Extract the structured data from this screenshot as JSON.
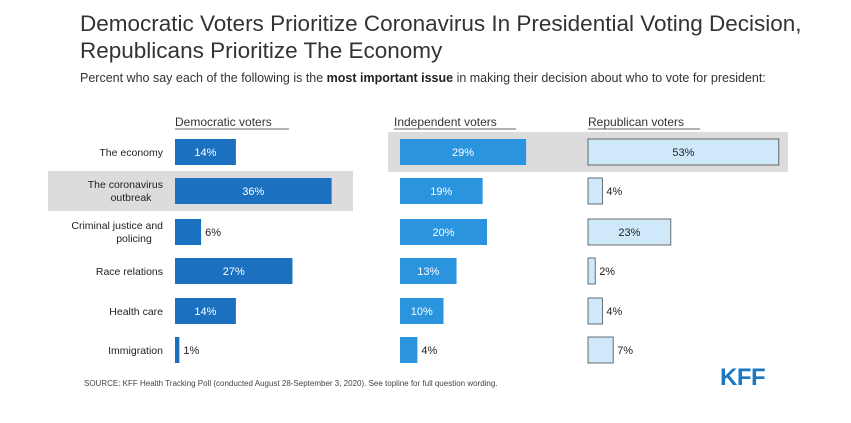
{
  "title": "Democratic Voters Prioritize Coronavirus In Presidential Voting Decision, Republicans Prioritize The Economy",
  "subtitle": {
    "before": "Percent who say each of the following is the ",
    "bold": "most important issue",
    "after": " in making their decision about who to vote for president:"
  },
  "source": "SOURCE: KFF Health Tracking Poll (conducted August 28-September 3, 2020). See topline for full question wording.",
  "logo": "KFF",
  "colors": {
    "democratic": "#1b70bf",
    "independent": "#2b94de",
    "republican": "#cfe9fb",
    "republican_border": "#4a4a4a",
    "highlight": "#dcdcdc"
  },
  "chart_data": {
    "type": "bar",
    "orientation": "horizontal",
    "unit": "%",
    "categories": [
      "The economy",
      "The coronavirus outbreak",
      "Criminal justice and policing",
      "Race relations",
      "Health care",
      "Immigration"
    ],
    "series": [
      {
        "name": "Democratic voters",
        "values": [
          14,
          36,
          6,
          27,
          14,
          1
        ],
        "value_labels": [
          "14%",
          "36%",
          "6%",
          "27%",
          "14%",
          "1%"
        ],
        "highlight_index": 1
      },
      {
        "name": "Independent voters",
        "values": [
          29,
          19,
          20,
          13,
          10,
          4
        ],
        "value_labels": [
          "29%",
          "19%",
          "20%",
          "13%",
          "10%",
          "4%"
        ],
        "highlight_index": 0
      },
      {
        "name": "Republican voters",
        "values": [
          53,
          4,
          23,
          2,
          4,
          7
        ],
        "value_labels": [
          "53%",
          "4%",
          "23%",
          "2%",
          "4%",
          "7%"
        ],
        "highlight_index": 0
      }
    ]
  }
}
